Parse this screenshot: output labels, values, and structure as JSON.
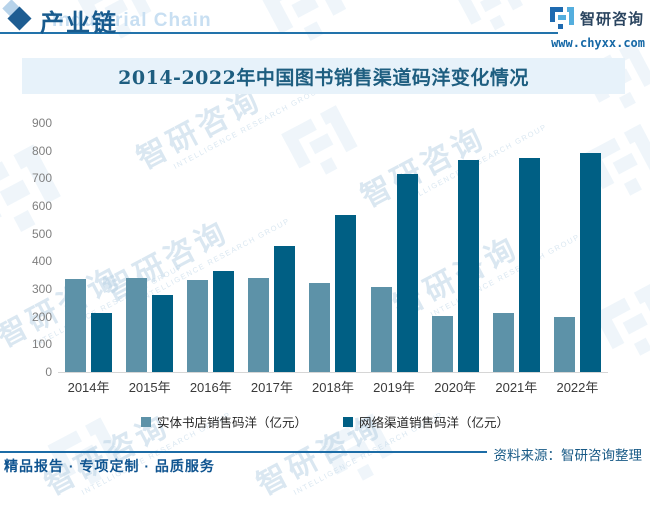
{
  "header": {
    "title": "产业链",
    "title_en": "Industrial Chain",
    "brand": "智研咨询",
    "website": "www.chyxx.com"
  },
  "chart_data": {
    "type": "bar",
    "title": "2014-2022年中国图书销售渠道码洋变化情况",
    "categories": [
      "2014年",
      "2015年",
      "2016年",
      "2017年",
      "2018年",
      "2019年",
      "2020年",
      "2021年",
      "2022年"
    ],
    "series": [
      {
        "name": "实体书店销售码洋（亿元）",
        "color": "#5d92a8",
        "values": [
          335,
          340,
          333,
          340,
          320,
          306,
          203,
          212,
          197
        ]
      },
      {
        "name": "网络渠道销售码洋（亿元）",
        "color": "#005f84",
        "values": [
          212,
          280,
          364,
          455,
          568,
          715,
          767,
          775,
          790
        ]
      }
    ],
    "xlabel": "",
    "ylabel": "",
    "ylim": [
      0,
      900
    ],
    "ytick_step": 100,
    "grid": false,
    "legend_position": "bottom"
  },
  "footer": {
    "source_note": "资料来源：智研咨询整理",
    "slogan": "精品报告 · 专项定制 · 品质服务"
  },
  "watermark": {
    "cn": "智研咨询",
    "en": "INTELLIGENCE RESEARCH GROUP"
  },
  "colors": {
    "bar_light": "#5d92a8",
    "bar_dark": "#005f84",
    "title_band_bg": "#e7f2fa",
    "title_text": "#1e5e80",
    "header_blue": "#185b8e",
    "accent_rule": "#2273ab",
    "axis_label": "#7f7f7f"
  }
}
